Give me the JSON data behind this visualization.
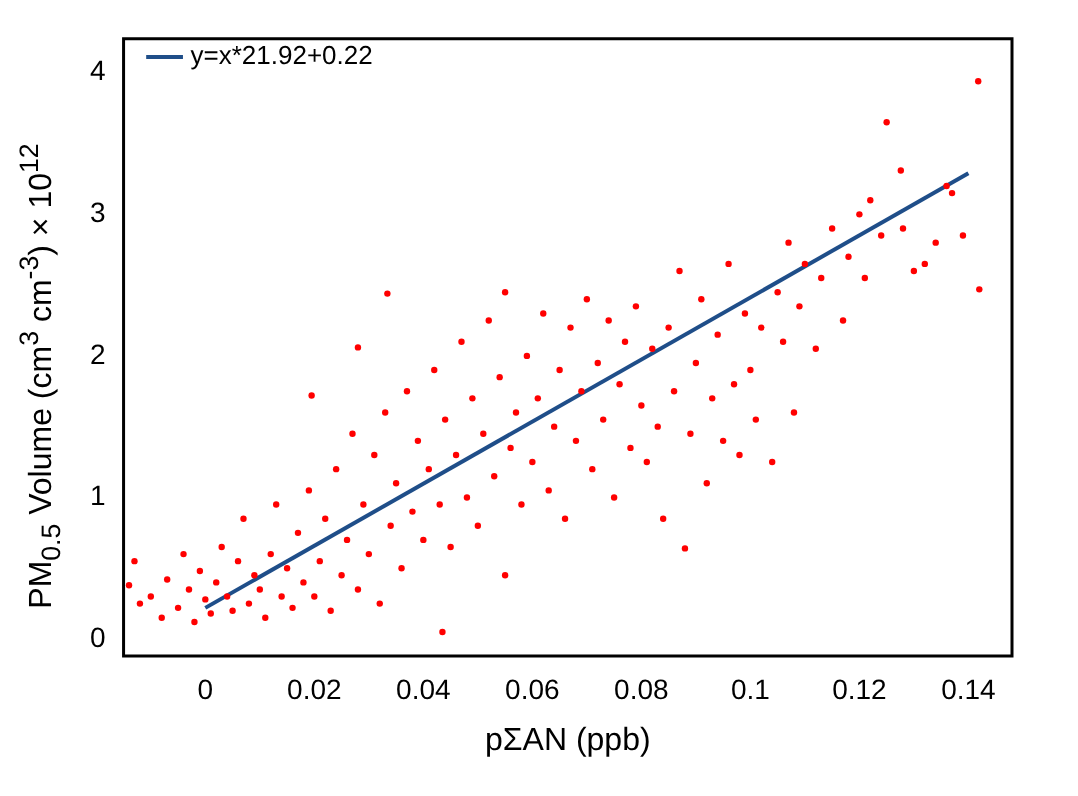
{
  "chart_data": {
    "type": "scatter",
    "xlabel": "pΣAN (ppb)",
    "ylabel": "PM$_{0.5}$ Volume (cm$^{3}$ cm$^{-3}$)  × 10$^{12}$",
    "xlim": [
      -0.015,
      0.148
    ],
    "ylim": [
      -0.12,
      4.24
    ],
    "xticks": [
      0,
      0.02,
      0.04,
      0.06,
      0.08,
      0.1,
      0.12,
      0.14
    ],
    "yticks": [
      0,
      1,
      2,
      3,
      4
    ],
    "legend": "top left",
    "grid": false,
    "marker": "circle",
    "series": [
      {
        "color": "#ff0000",
        "x": [
          -0.014,
          -0.013,
          -0.012,
          -0.01,
          -0.008,
          -0.007,
          -0.005,
          -0.004,
          -0.003,
          -0.002,
          -0.001,
          0.0,
          0.001,
          0.002,
          0.003,
          0.004,
          0.005,
          0.006,
          0.007,
          0.008,
          0.009,
          0.01,
          0.011,
          0.012,
          0.013,
          0.014,
          0.015,
          0.016,
          0.017,
          0.018,
          0.019,
          0.0195,
          0.02,
          0.021,
          0.022,
          0.023,
          0.024,
          0.025,
          0.026,
          0.027,
          0.028,
          0.028,
          0.029,
          0.03,
          0.031,
          0.032,
          0.033,
          0.0334,
          0.034,
          0.035,
          0.036,
          0.037,
          0.038,
          0.039,
          0.04,
          0.041,
          0.042,
          0.043,
          0.0435,
          0.044,
          0.045,
          0.046,
          0.047,
          0.048,
          0.049,
          0.05,
          0.051,
          0.052,
          0.053,
          0.054,
          0.055,
          0.055,
          0.056,
          0.057,
          0.058,
          0.059,
          0.06,
          0.061,
          0.062,
          0.063,
          0.064,
          0.065,
          0.066,
          0.067,
          0.068,
          0.069,
          0.07,
          0.071,
          0.072,
          0.073,
          0.074,
          0.075,
          0.076,
          0.077,
          0.078,
          0.079,
          0.08,
          0.081,
          0.082,
          0.083,
          0.084,
          0.085,
          0.086,
          0.087,
          0.088,
          0.089,
          0.09,
          0.091,
          0.092,
          0.093,
          0.094,
          0.095,
          0.096,
          0.097,
          0.098,
          0.099,
          0.1,
          0.101,
          0.102,
          0.104,
          0.105,
          0.106,
          0.107,
          0.108,
          0.109,
          0.11,
          0.112,
          0.113,
          0.115,
          0.117,
          0.118,
          0.12,
          0.121,
          0.122,
          0.124,
          0.125,
          0.1276,
          0.128,
          0.13,
          0.132,
          0.134,
          0.136,
          0.137,
          0.139,
          0.1418,
          0.142
        ],
        "values": [
          0.38,
          0.55,
          0.25,
          0.3,
          0.15,
          0.42,
          0.22,
          0.6,
          0.35,
          0.12,
          0.48,
          0.28,
          0.18,
          0.4,
          0.65,
          0.3,
          0.2,
          0.55,
          0.85,
          0.25,
          0.45,
          0.35,
          0.15,
          0.6,
          0.95,
          0.3,
          0.5,
          0.22,
          0.75,
          0.4,
          1.05,
          1.72,
          0.3,
          0.55,
          0.85,
          0.2,
          1.2,
          0.45,
          0.7,
          1.45,
          2.06,
          0.35,
          0.95,
          0.6,
          1.3,
          0.25,
          1.6,
          2.44,
          0.8,
          1.1,
          0.5,
          1.75,
          0.9,
          1.4,
          0.7,
          1.2,
          1.9,
          0.95,
          0.05,
          1.55,
          0.65,
          1.3,
          2.1,
          1.0,
          1.7,
          0.8,
          1.45,
          2.25,
          1.15,
          1.85,
          2.45,
          0.45,
          1.35,
          1.6,
          0.95,
          2.0,
          1.25,
          1.7,
          2.3,
          1.05,
          1.5,
          1.9,
          0.85,
          2.2,
          1.4,
          1.75,
          2.4,
          1.2,
          1.95,
          1.55,
          2.25,
          1.0,
          1.8,
          2.1,
          1.35,
          2.35,
          1.65,
          1.25,
          2.05,
          1.5,
          0.85,
          2.2,
          1.75,
          2.6,
          0.64,
          1.45,
          1.95,
          2.4,
          1.1,
          1.7,
          2.15,
          1.4,
          2.65,
          1.8,
          1.3,
          2.3,
          1.9,
          1.55,
          2.2,
          1.25,
          2.45,
          2.1,
          2.8,
          1.6,
          2.35,
          2.65,
          2.05,
          2.55,
          2.9,
          2.25,
          2.7,
          3.0,
          2.55,
          3.1,
          2.85,
          3.65,
          3.31,
          2.9,
          2.6,
          2.65,
          2.8,
          3.2,
          3.15,
          2.85,
          3.94,
          2.47
        ]
      },
      {
        "type": "line",
        "name": "y=x*21.92+0.22",
        "color": "#1f4e89",
        "marker": "none",
        "x": [
          0,
          0.14
        ],
        "values": [
          0.22,
          3.29
        ]
      }
    ]
  }
}
